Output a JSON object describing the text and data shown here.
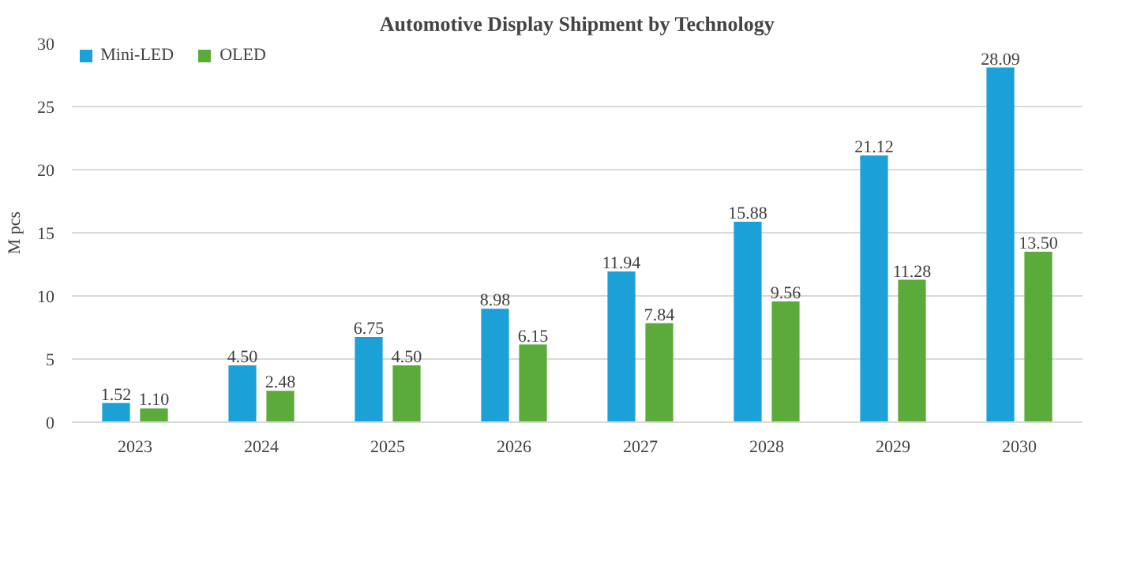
{
  "chart_data": {
    "type": "bar",
    "title": "Automotive Display Shipment by Technology",
    "ylabel": "M pcs",
    "categories": [
      "2023",
      "2024",
      "2025",
      "2026",
      "2027",
      "2028",
      "2029",
      "2030"
    ],
    "series": [
      {
        "name": "Mini-LED",
        "color": "#1ba1d8",
        "values": [
          1.52,
          4.5,
          6.75,
          8.98,
          11.94,
          15.88,
          21.12,
          28.09
        ],
        "value_labels": [
          "1.52",
          "4.50",
          "6.75",
          "8.98",
          "11.94",
          "15.88",
          "21.12",
          "28.09"
        ]
      },
      {
        "name": "OLED",
        "color": "#5aab3a",
        "values": [
          1.1,
          2.48,
          4.5,
          6.15,
          7.84,
          9.56,
          11.28,
          13.5
        ],
        "value_labels": [
          "1.10",
          "2.48",
          "4.50",
          "6.15",
          "7.84",
          "9.56",
          "11.28",
          "13.50"
        ]
      }
    ],
    "ylim": [
      0,
      30
    ],
    "yticks": [
      0,
      5,
      10,
      15,
      20,
      25,
      30
    ],
    "grid": "y",
    "legend": "top left"
  }
}
